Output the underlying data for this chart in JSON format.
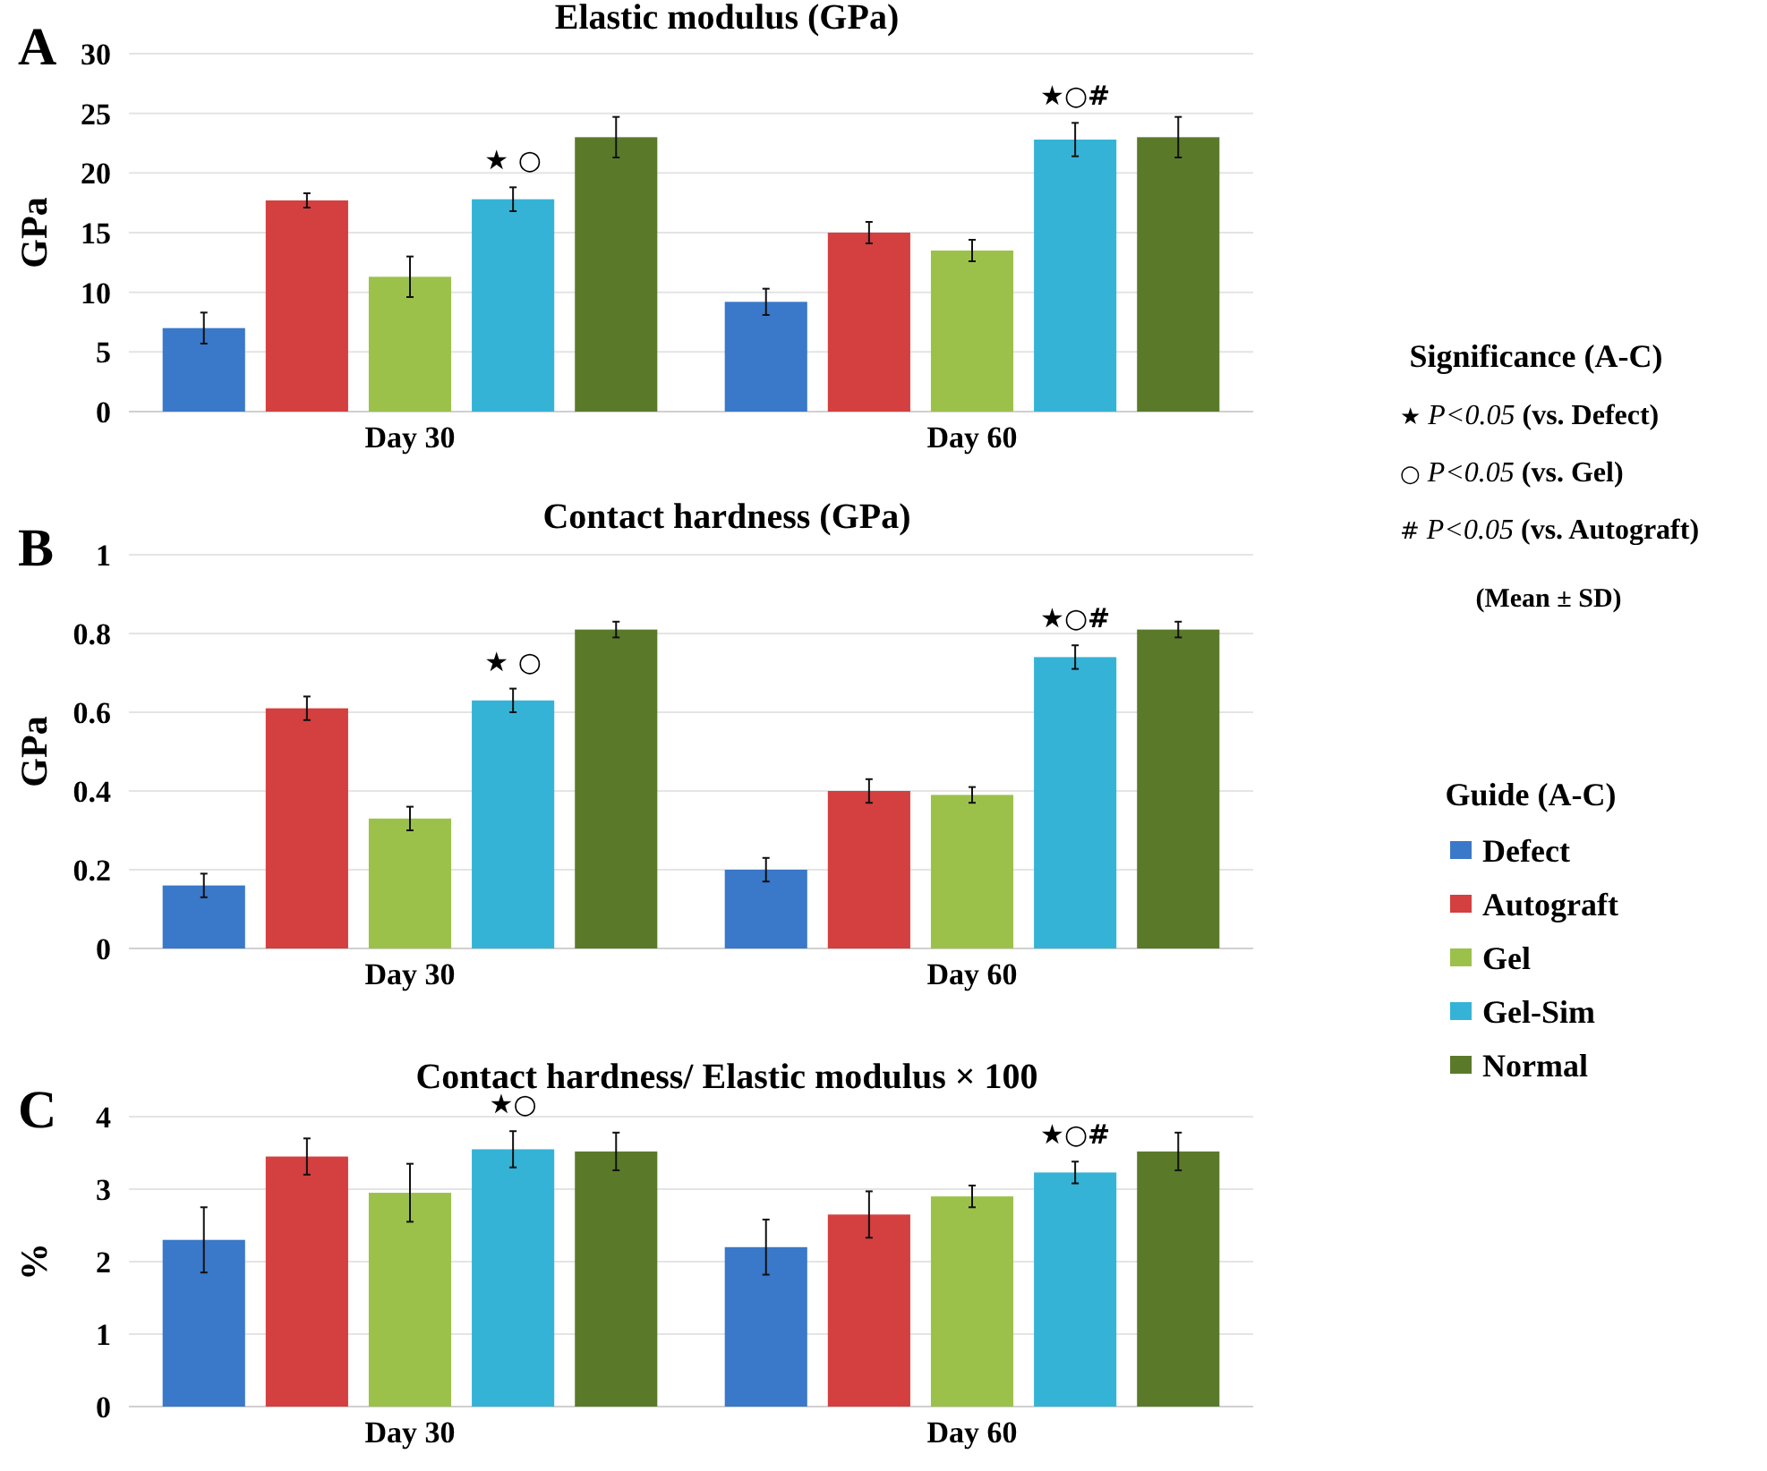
{
  "chart_data": [
    {
      "type": "bar",
      "title": "Elastic modulus (GPa)",
      "ylabel": "GPa",
      "categories": [
        "Day 30",
        "Day 60"
      ],
      "ylim": [
        0,
        30
      ],
      "yticks": [
        0,
        5,
        10,
        15,
        20,
        25,
        30
      ],
      "grid": "y",
      "series": [
        {
          "color": "#3a78c9",
          "values": [
            7,
            9.2
          ],
          "errors": [
            1.3,
            1.1
          ]
        },
        {
          "color": "#d43f3f",
          "values": [
            17.7,
            15
          ],
          "errors": [
            0.6,
            0.9
          ]
        },
        {
          "color": "#9cc14a",
          "values": [
            11.3,
            13.5
          ],
          "errors": [
            1.7,
            0.9
          ]
        },
        {
          "color": "#35b3d6",
          "values": [
            17.8,
            22.8
          ],
          "errors": [
            1.0,
            1.4
          ]
        },
        {
          "color": "#5a7a2a",
          "values": [
            23,
            23
          ],
          "errors": [
            1.7,
            1.7
          ]
        }
      ],
      "annotations": [
        "A",
        "★ ○",
        "★○#",
        "Significance (A-C)",
        "★ P<0.05 (vs. Defect)",
        "○ P<0.05 (vs. Gel)",
        "# P<0.05 (vs. Autograft)",
        "(Mean ± SD)"
      ]
    },
    {
      "type": "bar",
      "title": "Contact hardness  (GPa)",
      "ylabel": "GPa",
      "categories": [
        "Day 30",
        "Day 60"
      ],
      "ylim": [
        0,
        1
      ],
      "yticks": [
        0,
        0.2,
        0.4,
        0.6,
        0.8,
        1
      ],
      "grid": "y",
      "legend": "right",
      "legend_title": "Guide (A-C)",
      "series": [
        {
          "name": "Defect",
          "color": "#3a78c9",
          "values": [
            0.16,
            0.2
          ],
          "errors": [
            0.03,
            0.03
          ]
        },
        {
          "name": "Autograft",
          "color": "#d43f3f",
          "values": [
            0.61,
            0.4
          ],
          "errors": [
            0.03,
            0.03
          ]
        },
        {
          "name": "Gel",
          "color": "#9cc14a",
          "values": [
            0.33,
            0.39
          ],
          "errors": [
            0.03,
            0.02
          ]
        },
        {
          "name": "Gel-Sim",
          "color": "#35b3d6",
          "values": [
            0.63,
            0.74
          ],
          "errors": [
            0.03,
            0.03
          ]
        },
        {
          "name": "Normal",
          "color": "#5a7a2a",
          "values": [
            0.81,
            0.81
          ],
          "errors": [
            0.02,
            0.02
          ]
        }
      ],
      "annotations": [
        "B",
        "★ ○",
        "★○#"
      ]
    },
    {
      "type": "bar",
      "title": "Contact hardness/ Elastic modulus × 100",
      "ylabel": "%",
      "categories": [
        "Day 30",
        "Day 60"
      ],
      "ylim": [
        0,
        4
      ],
      "yticks": [
        0,
        1,
        2,
        3,
        4
      ],
      "grid": "y",
      "series": [
        {
          "color": "#3a78c9",
          "values": [
            2.3,
            2.2
          ],
          "errors": [
            0.45,
            0.38
          ]
        },
        {
          "color": "#d43f3f",
          "values": [
            3.45,
            2.65
          ],
          "errors": [
            0.25,
            0.32
          ]
        },
        {
          "color": "#9cc14a",
          "values": [
            2.95,
            2.9
          ],
          "errors": [
            0.4,
            0.15
          ]
        },
        {
          "color": "#35b3d6",
          "values": [
            3.55,
            3.23
          ],
          "errors": [
            0.25,
            0.15
          ]
        },
        {
          "color": "#5a7a2a",
          "values": [
            3.52,
            3.52
          ],
          "errors": [
            0.26,
            0.26
          ]
        }
      ],
      "annotations": [
        "C",
        "★○",
        "★○#"
      ]
    }
  ]
}
